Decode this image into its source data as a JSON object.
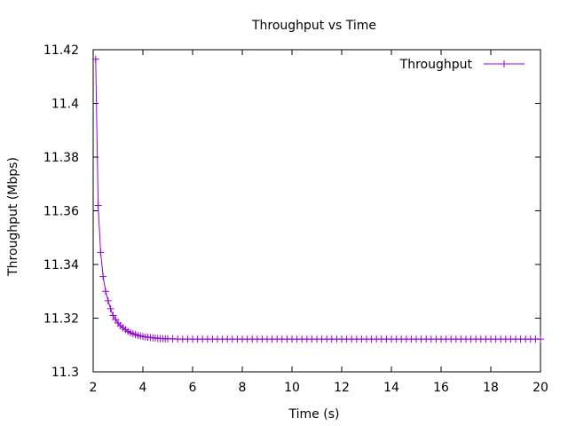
{
  "chart_data": {
    "type": "line",
    "title": "Throughput vs Time",
    "xlabel": "Time (s)",
    "ylabel": "Throughput (Mbps)",
    "xlim": [
      2,
      20
    ],
    "ylim": [
      11.3,
      11.42
    ],
    "xticks": [
      2,
      4,
      6,
      8,
      10,
      12,
      14,
      16,
      18,
      20
    ],
    "yticks": [
      11.3,
      11.32,
      11.34,
      11.36,
      11.38,
      11.4,
      11.42
    ],
    "ytick_labels": [
      "11.3",
      "11.32",
      "11.34",
      "11.36",
      "11.38",
      "11.4",
      "11.42"
    ],
    "grid": false,
    "legend_position": "top-right",
    "series": [
      {
        "name": "Throughput",
        "color": "#9400d3",
        "marker": "plus",
        "x": [
          2.1,
          2.2,
          2.3,
          2.4,
          2.5,
          2.6,
          2.7,
          2.8,
          2.9,
          3.0,
          3.1,
          3.2,
          3.3,
          3.4,
          3.5,
          3.6,
          3.7,
          3.8,
          3.9,
          4.0,
          4.1,
          4.2,
          4.3,
          4.4,
          4.5,
          4.6,
          4.7,
          4.8,
          4.9,
          5.0,
          5.2,
          5.4,
          5.6,
          5.8,
          6.0,
          6.2,
          6.4,
          6.6,
          6.8,
          7.0,
          7.2,
          7.4,
          7.6,
          7.8,
          8.0,
          8.2,
          8.4,
          8.6,
          8.8,
          9.0,
          9.2,
          9.4,
          9.6,
          9.8,
          10.0,
          10.2,
          10.4,
          10.6,
          10.8,
          11.0,
          11.2,
          11.4,
          11.6,
          11.8,
          12.0,
          12.2,
          12.4,
          12.6,
          12.8,
          13.0,
          13.2,
          13.4,
          13.6,
          13.8,
          14.0,
          14.2,
          14.4,
          14.6,
          14.8,
          15.0,
          15.2,
          15.4,
          15.6,
          15.8,
          16.0,
          16.2,
          16.4,
          16.6,
          16.8,
          17.0,
          17.2,
          17.4,
          17.6,
          17.8,
          18.0,
          18.2,
          18.4,
          18.6,
          18.8,
          19.0,
          19.2,
          19.4,
          19.6,
          19.8,
          20.0
        ],
        "y": [
          11.4165,
          11.362,
          11.3445,
          11.3355,
          11.33,
          11.3265,
          11.3235,
          11.321,
          11.3195,
          11.3182,
          11.3172,
          11.3164,
          11.3157,
          11.3151,
          11.3146,
          11.3142,
          11.3139,
          11.3136,
          11.3134,
          11.3132,
          11.313,
          11.3129,
          11.3128,
          11.3127,
          11.3126,
          11.3125,
          11.3124,
          11.3124,
          11.3123,
          11.3123,
          11.3123,
          11.3122,
          11.3122,
          11.3122,
          11.3122,
          11.3122,
          11.3122,
          11.3122,
          11.3122,
          11.3122,
          11.3122,
          11.3122,
          11.3122,
          11.3122,
          11.3122,
          11.3122,
          11.3122,
          11.3122,
          11.3122,
          11.3122,
          11.3122,
          11.3122,
          11.3122,
          11.3122,
          11.3122,
          11.3122,
          11.3122,
          11.3122,
          11.3122,
          11.3122,
          11.3122,
          11.3122,
          11.3122,
          11.3122,
          11.3122,
          11.3122,
          11.3122,
          11.3122,
          11.3122,
          11.3122,
          11.3122,
          11.3122,
          11.3122,
          11.3122,
          11.3122,
          11.3122,
          11.3122,
          11.3122,
          11.3122,
          11.3122,
          11.3122,
          11.3122,
          11.3122,
          11.3122,
          11.3122,
          11.3122,
          11.3122,
          11.3122,
          11.3122,
          11.3122,
          11.3122,
          11.3122,
          11.3122,
          11.3122,
          11.3122,
          11.3122,
          11.3122,
          11.3122,
          11.3122,
          11.3122,
          11.3122,
          11.3122,
          11.3122,
          11.3122,
          11.3122
        ]
      }
    ]
  }
}
